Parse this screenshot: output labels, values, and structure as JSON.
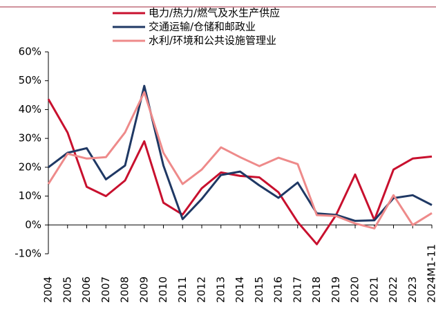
{
  "chart_data": {
    "type": "line",
    "categories": [
      "2004",
      "2005",
      "2006",
      "2007",
      "2008",
      "2009",
      "2010",
      "2011",
      "2012",
      "2013",
      "2014",
      "2015",
      "2016",
      "2017",
      "2018",
      "2019",
      "2020",
      "2021",
      "2022",
      "2023",
      "2024M1-11"
    ],
    "series": [
      {
        "name": "电力/热力/燃气及水生产供应",
        "color": "#c8102e",
        "values": [
          43.6,
          32,
          13.2,
          10,
          15.4,
          29,
          7.7,
          3.6,
          12.7,
          18.2,
          17,
          16.5,
          11.3,
          1,
          -6.7,
          3.4,
          17.5,
          1.7,
          19.2,
          23,
          23.7
        ]
      },
      {
        "name": "交通运输/仓储和邮政业",
        "color": "#1f3864",
        "values": [
          20,
          25,
          26.6,
          15.8,
          20.6,
          48.2,
          20.6,
          2,
          9,
          17.3,
          18.5,
          13.7,
          9.4,
          14.7,
          4,
          3.5,
          1.4,
          1.6,
          9.3,
          10.3,
          6.9
        ]
      },
      {
        "name": "水利/环境和公共设施管理业",
        "color": "#ee8a8a",
        "values": [
          14.2,
          24.7,
          23,
          23.5,
          32.1,
          46,
          25,
          14.2,
          19.2,
          26.9,
          23.5,
          20.4,
          23.3,
          21.1,
          3.4,
          3.1,
          0.5,
          -1.2,
          10.3,
          0,
          4.1
        ]
      }
    ],
    "ylim": [
      -10,
      60
    ],
    "yticks": [
      {
        "value": -10,
        "label": "-10%"
      },
      {
        "value": 0,
        "label": "0%"
      },
      {
        "value": 10,
        "label": "10%"
      },
      {
        "value": 20,
        "label": "20%"
      },
      {
        "value": 30,
        "label": "30%"
      },
      {
        "value": 40,
        "label": "40%"
      },
      {
        "value": 50,
        "label": "50%"
      },
      {
        "value": 60,
        "label": "60%"
      }
    ]
  }
}
